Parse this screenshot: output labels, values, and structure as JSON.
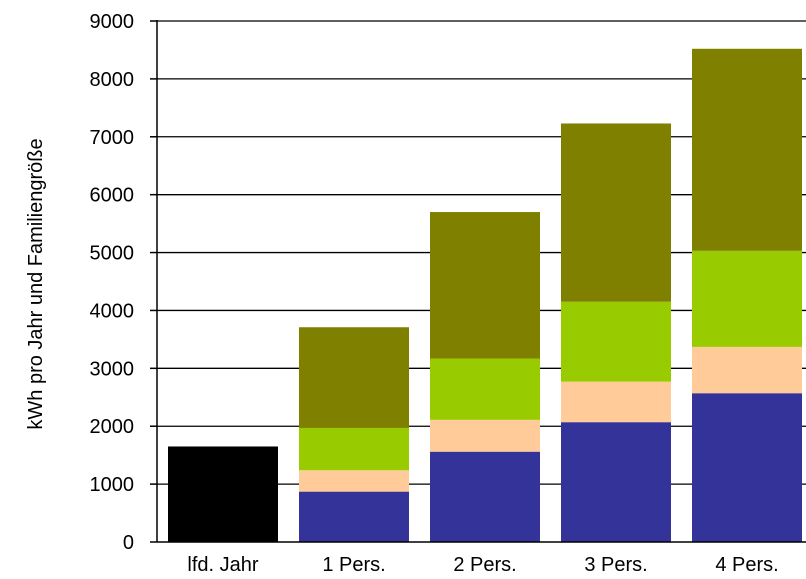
{
  "chart_data": {
    "type": "bar",
    "stacked": true,
    "title": "",
    "xlabel": "",
    "ylabel": "kWh pro Jahr und Familiengröße",
    "categories": [
      "lfd. Jahr",
      "1 Pers.",
      "2 Pers.",
      "3 Pers.",
      "4 Pers."
    ],
    "ylim": [
      0,
      9000
    ],
    "yticks": [
      0,
      1000,
      2000,
      3000,
      4000,
      5000,
      6000,
      7000,
      8000,
      9000
    ],
    "grid": true,
    "legend": "none",
    "series": [
      {
        "color": "#000000",
        "values": [
          1650,
          0,
          0,
          0,
          0
        ]
      },
      {
        "color": "#333399",
        "values": [
          0,
          870,
          1560,
          2070,
          2570
        ]
      },
      {
        "color": "#FFCC99",
        "values": [
          0,
          370,
          550,
          700,
          800
        ]
      },
      {
        "color": "#99CC00",
        "values": [
          0,
          730,
          1060,
          1380,
          1660
        ]
      },
      {
        "color": "#808000",
        "values": [
          0,
          1740,
          2530,
          3080,
          3490
        ]
      }
    ]
  }
}
